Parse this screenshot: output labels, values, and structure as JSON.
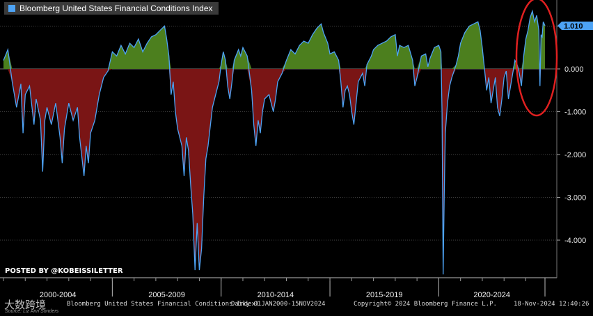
{
  "chart_data": {
    "type": "area",
    "title": "Bloomberg United States Financial Conditions Index",
    "xlabel": "",
    "ylabel": "",
    "x_range": [
      2000.0,
      2024.88
    ],
    "ylim": [
      -4.8,
      1.55
    ],
    "y_ticks": [
      1.0,
      0.0,
      -1.0,
      -2.0,
      -3.0,
      -4.0
    ],
    "y_tick_labels": [
      "",
      "0.000",
      "-1.000",
      "-2.000",
      "-3.000",
      "-4.000"
    ],
    "x_periods": [
      "2000-2004",
      "2005-2009",
      "2010-2014",
      "2015-2019",
      "2020-2024"
    ],
    "last_value": 1.01,
    "last_value_label": "1.010",
    "series": [
      {
        "name": "Bloomberg United States Financial Conditions Index",
        "color": "#4da3f5",
        "positive_fill": "#4c7f1e",
        "negative_fill": "#7a1515",
        "points": [
          [
            2000.0,
            0.2
          ],
          [
            2000.2,
            0.45
          ],
          [
            2000.4,
            -0.3
          ],
          [
            2000.6,
            -0.9
          ],
          [
            2000.8,
            -0.35
          ],
          [
            2000.9,
            -1.5
          ],
          [
            2001.0,
            -0.6
          ],
          [
            2001.2,
            -0.4
          ],
          [
            2001.4,
            -1.3
          ],
          [
            2001.5,
            -0.7
          ],
          [
            2001.7,
            -1.2
          ],
          [
            2001.8,
            -2.4
          ],
          [
            2001.9,
            -1.2
          ],
          [
            2002.0,
            -0.9
          ],
          [
            2002.2,
            -1.3
          ],
          [
            2002.4,
            -0.8
          ],
          [
            2002.6,
            -1.6
          ],
          [
            2002.7,
            -2.2
          ],
          [
            2002.8,
            -1.4
          ],
          [
            2003.0,
            -0.8
          ],
          [
            2003.2,
            -1.2
          ],
          [
            2003.4,
            -0.9
          ],
          [
            2003.5,
            -1.6
          ],
          [
            2003.7,
            -2.5
          ],
          [
            2003.8,
            -1.8
          ],
          [
            2003.9,
            -2.2
          ],
          [
            2004.0,
            -1.5
          ],
          [
            2004.2,
            -1.2
          ],
          [
            2004.4,
            -0.6
          ],
          [
            2004.6,
            -0.2
          ],
          [
            2004.8,
            -0.05
          ],
          [
            2005.0,
            0.4
          ],
          [
            2005.2,
            0.3
          ],
          [
            2005.4,
            0.55
          ],
          [
            2005.6,
            0.35
          ],
          [
            2005.8,
            0.6
          ],
          [
            2006.0,
            0.5
          ],
          [
            2006.2,
            0.7
          ],
          [
            2006.4,
            0.4
          ],
          [
            2006.6,
            0.6
          ],
          [
            2006.8,
            0.75
          ],
          [
            2007.0,
            0.8
          ],
          [
            2007.2,
            0.9
          ],
          [
            2007.4,
            1.0
          ],
          [
            2007.5,
            0.7
          ],
          [
            2007.6,
            0.3
          ],
          [
            2007.7,
            -0.6
          ],
          [
            2007.8,
            -0.3
          ],
          [
            2007.9,
            -1.0
          ],
          [
            2008.0,
            -1.4
          ],
          [
            2008.2,
            -1.8
          ],
          [
            2008.3,
            -2.5
          ],
          [
            2008.4,
            -1.6
          ],
          [
            2008.5,
            -1.9
          ],
          [
            2008.6,
            -2.7
          ],
          [
            2008.7,
            -3.4
          ],
          [
            2008.8,
            -4.7
          ],
          [
            2008.9,
            -3.6
          ],
          [
            2009.0,
            -4.7
          ],
          [
            2009.1,
            -4.2
          ],
          [
            2009.2,
            -3.0
          ],
          [
            2009.3,
            -2.1
          ],
          [
            2009.4,
            -1.8
          ],
          [
            2009.6,
            -0.9
          ],
          [
            2009.8,
            -0.5
          ],
          [
            2009.9,
            -0.3
          ],
          [
            2010.0,
            0.1
          ],
          [
            2010.1,
            0.4
          ],
          [
            2010.2,
            0.2
          ],
          [
            2010.3,
            -0.4
          ],
          [
            2010.4,
            -0.7
          ],
          [
            2010.5,
            -0.3
          ],
          [
            2010.6,
            0.2
          ],
          [
            2010.8,
            0.45
          ],
          [
            2010.9,
            0.3
          ],
          [
            2011.0,
            0.5
          ],
          [
            2011.2,
            0.3
          ],
          [
            2011.4,
            -0.5
          ],
          [
            2011.5,
            -1.3
          ],
          [
            2011.6,
            -1.8
          ],
          [
            2011.7,
            -1.2
          ],
          [
            2011.8,
            -1.5
          ],
          [
            2011.9,
            -1.0
          ],
          [
            2012.0,
            -0.7
          ],
          [
            2012.2,
            -0.6
          ],
          [
            2012.4,
            -1.0
          ],
          [
            2012.5,
            -0.7
          ],
          [
            2012.6,
            -0.3
          ],
          [
            2012.8,
            -0.1
          ],
          [
            2013.0,
            0.2
          ],
          [
            2013.2,
            0.45
          ],
          [
            2013.4,
            0.35
          ],
          [
            2013.6,
            0.55
          ],
          [
            2013.8,
            0.65
          ],
          [
            2014.0,
            0.6
          ],
          [
            2014.2,
            0.8
          ],
          [
            2014.4,
            0.95
          ],
          [
            2014.6,
            1.05
          ],
          [
            2014.7,
            0.85
          ],
          [
            2014.9,
            0.6
          ],
          [
            2015.0,
            0.35
          ],
          [
            2015.2,
            0.4
          ],
          [
            2015.4,
            0.2
          ],
          [
            2015.5,
            -0.3
          ],
          [
            2015.6,
            -0.9
          ],
          [
            2015.7,
            -0.5
          ],
          [
            2015.8,
            -0.4
          ],
          [
            2015.9,
            -0.6
          ],
          [
            2016.0,
            -1.0
          ],
          [
            2016.1,
            -1.3
          ],
          [
            2016.2,
            -0.8
          ],
          [
            2016.3,
            -0.3
          ],
          [
            2016.5,
            -0.1
          ],
          [
            2016.6,
            -0.4
          ],
          [
            2016.7,
            0.1
          ],
          [
            2016.9,
            0.3
          ],
          [
            2017.0,
            0.45
          ],
          [
            2017.2,
            0.55
          ],
          [
            2017.4,
            0.6
          ],
          [
            2017.6,
            0.65
          ],
          [
            2017.8,
            0.75
          ],
          [
            2018.0,
            0.8
          ],
          [
            2018.1,
            0.3
          ],
          [
            2018.2,
            0.55
          ],
          [
            2018.4,
            0.5
          ],
          [
            2018.6,
            0.55
          ],
          [
            2018.8,
            0.2
          ],
          [
            2018.9,
            -0.4
          ],
          [
            2019.0,
            -0.2
          ],
          [
            2019.2,
            0.3
          ],
          [
            2019.4,
            0.35
          ],
          [
            2019.5,
            0.05
          ],
          [
            2019.6,
            0.25
          ],
          [
            2019.8,
            0.5
          ],
          [
            2020.0,
            0.55
          ],
          [
            2020.1,
            0.4
          ],
          [
            2020.15,
            -1.0
          ],
          [
            2020.2,
            -4.8
          ],
          [
            2020.25,
            -3.0
          ],
          [
            2020.3,
            -1.5
          ],
          [
            2020.4,
            -0.8
          ],
          [
            2020.5,
            -0.4
          ],
          [
            2020.6,
            -0.2
          ],
          [
            2020.8,
            0.1
          ],
          [
            2020.9,
            0.3
          ],
          [
            2021.0,
            0.6
          ],
          [
            2021.2,
            0.85
          ],
          [
            2021.4,
            1.0
          ],
          [
            2021.6,
            1.05
          ],
          [
            2021.8,
            1.1
          ],
          [
            2021.9,
            0.9
          ],
          [
            2022.0,
            0.5
          ],
          [
            2022.1,
            0.0
          ],
          [
            2022.2,
            -0.5
          ],
          [
            2022.3,
            -0.2
          ],
          [
            2022.4,
            -0.8
          ],
          [
            2022.5,
            -0.5
          ],
          [
            2022.6,
            -0.2
          ],
          [
            2022.7,
            -0.9
          ],
          [
            2022.8,
            -1.1
          ],
          [
            2022.9,
            -0.7
          ],
          [
            2023.0,
            -0.2
          ],
          [
            2023.1,
            -0.05
          ],
          [
            2023.2,
            -0.7
          ],
          [
            2023.3,
            -0.4
          ],
          [
            2023.4,
            -0.1
          ],
          [
            2023.5,
            0.2
          ],
          [
            2023.6,
            0.1
          ],
          [
            2023.7,
            -0.1
          ],
          [
            2023.8,
            -0.4
          ],
          [
            2023.9,
            0.3
          ],
          [
            2024.0,
            0.7
          ],
          [
            2024.1,
            0.9
          ],
          [
            2024.2,
            1.2
          ],
          [
            2024.3,
            1.35
          ],
          [
            2024.4,
            1.1
          ],
          [
            2024.5,
            1.25
          ],
          [
            2024.6,
            0.9
          ],
          [
            2024.65,
            -0.4
          ],
          [
            2024.7,
            0.8
          ],
          [
            2024.75,
            0.75
          ],
          [
            2024.8,
            1.1
          ],
          [
            2024.88,
            1.01
          ]
        ]
      }
    ]
  },
  "annotations": {
    "highlight": "recent period circled in red",
    "posted_by": "POSTED BY @KOBEISSILETTER"
  },
  "footer": {
    "index_name": "Bloomberg United States Financial Conditions Index)",
    "range": "Daily 01JAN2000-15NOV2024",
    "copyright": "Copyright© 2024 Bloomberg Finance L.P.",
    "timestamp": "18-Nov-2024 12:40:26",
    "source": "Source: Liz Ann Sonders",
    "watermark": "大数跨境"
  },
  "colors": {
    "background": "#000000",
    "line": "#4da3f5",
    "positive": "#4c7f1e",
    "negative": "#7a1515",
    "circle": "#e02020"
  }
}
